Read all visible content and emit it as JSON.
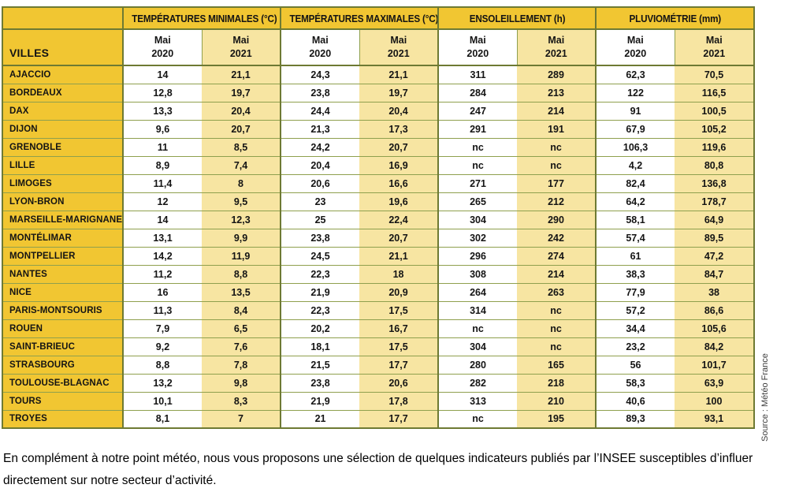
{
  "colors": {
    "mustard": "#F1C632",
    "cream": "#F7E5A2",
    "frame": "#6E7A33",
    "grid": "#8FA04E"
  },
  "table": {
    "villes_label": "VILLES",
    "month": "Mai",
    "years": {
      "y2020": "2020",
      "y2021": "2021"
    },
    "groups": [
      {
        "label": "TEMPÉRATURES MINIMALES (°C)"
      },
      {
        "label": "TEMPÉRATURES MAXIMALES (°C)"
      },
      {
        "label": "ENSOLEILLEMENT (h)"
      },
      {
        "label": "PLUVIOMÉTRIE (mm)"
      }
    ],
    "rows": [
      {
        "city": "AJACCIO",
        "values": [
          "14",
          "21,1",
          "24,3",
          "21,1",
          "311",
          "289",
          "62,3",
          "70,5"
        ]
      },
      {
        "city": "BORDEAUX",
        "values": [
          "12,8",
          "19,7",
          "23,8",
          "19,7",
          "284",
          "213",
          "122",
          "116,5"
        ]
      },
      {
        "city": "DAX",
        "values": [
          "13,3",
          "20,4",
          "24,4",
          "20,4",
          "247",
          "214",
          "91",
          "100,5"
        ]
      },
      {
        "city": "DIJON",
        "values": [
          "9,6",
          "20,7",
          "21,3",
          "17,3",
          "291",
          "191",
          "67,9",
          "105,2"
        ]
      },
      {
        "city": "GRENOBLE",
        "values": [
          "11",
          "8,5",
          "24,2",
          "20,7",
          "nc",
          "nc",
          "106,3",
          "119,6"
        ]
      },
      {
        "city": "LILLE",
        "values": [
          "8,9",
          "7,4",
          "20,4",
          "16,9",
          "nc",
          "nc",
          "4,2",
          "80,8"
        ]
      },
      {
        "city": "LIMOGES",
        "values": [
          "11,4",
          "8",
          "20,6",
          "16,6",
          "271",
          "177",
          "82,4",
          "136,8"
        ]
      },
      {
        "city": "LYON-BRON",
        "values": [
          "12",
          "9,5",
          "23",
          "19,6",
          "265",
          "212",
          "64,2",
          "178,7"
        ]
      },
      {
        "city": "MARSEILLE-MARIGNANE",
        "values": [
          "14",
          "12,3",
          "25",
          "22,4",
          "304",
          "290",
          "58,1",
          "64,9"
        ]
      },
      {
        "city": "MONTÉLIMAR",
        "values": [
          "13,1",
          "9,9",
          "23,8",
          "20,7",
          "302",
          "242",
          "57,4",
          "89,5"
        ]
      },
      {
        "city": "MONTPELLIER",
        "values": [
          "14,2",
          "11,9",
          "24,5",
          "21,1",
          "296",
          "274",
          "61",
          "47,2"
        ]
      },
      {
        "city": "NANTES",
        "values": [
          "11,2",
          "8,8",
          "22,3",
          "18",
          "308",
          "214",
          "38,3",
          "84,7"
        ]
      },
      {
        "city": "NICE",
        "values": [
          "16",
          "13,5",
          "21,9",
          "20,9",
          "264",
          "263",
          "77,9",
          "38"
        ]
      },
      {
        "city": "PARIS-MONTSOURIS",
        "values": [
          "11,3",
          "8,4",
          "22,3",
          "17,5",
          "314",
          "nc",
          "57,2",
          "86,6"
        ]
      },
      {
        "city": "ROUEN",
        "values": [
          "7,9",
          "6,5",
          "20,2",
          "16,7",
          "nc",
          "nc",
          "34,4",
          "105,6"
        ]
      },
      {
        "city": "SAINT-BRIEUC",
        "values": [
          "9,2",
          "7,6",
          "18,1",
          "17,5",
          "304",
          "nc",
          "23,2",
          "84,2"
        ]
      },
      {
        "city": "STRASBOURG",
        "values": [
          "8,8",
          "7,8",
          "21,5",
          "17,7",
          "280",
          "165",
          "56",
          "101,7"
        ]
      },
      {
        "city": "TOULOUSE-BLAGNAC",
        "values": [
          "13,2",
          "9,8",
          "23,8",
          "20,6",
          "282",
          "218",
          "58,3",
          "63,9"
        ]
      },
      {
        "city": "TOURS",
        "values": [
          "10,1",
          "8,3",
          "21,9",
          "17,8",
          "313",
          "210",
          "40,6",
          "100"
        ]
      },
      {
        "city": "TROYES",
        "values": [
          "8,1",
          "7",
          "21",
          "17,7",
          "nc",
          "195",
          "89,3",
          "93,1"
        ]
      }
    ]
  },
  "source_credit": "Source : Météo France",
  "footer": {
    "text": "En complément à notre point météo, nous vous proposons une sélection de quelques indicateurs publiés par l’INSEE susceptibles d’influer directement sur notre secteur d’activité."
  }
}
